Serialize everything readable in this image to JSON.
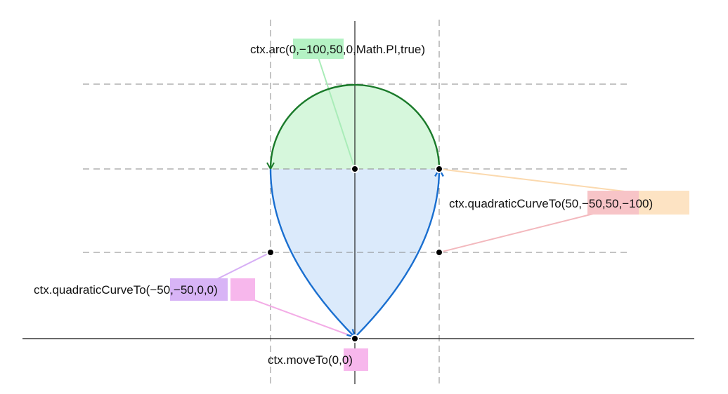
{
  "diagram": {
    "labels": {
      "arc": {
        "prefix": "ctx.arc(",
        "center": "0,−100",
        "rest": ",50,0,Math.PI,true)"
      },
      "quad_right": {
        "prefix": "ctx.quadraticCurveTo(",
        "control": "50,−50",
        "sep": ",",
        "end": "50,−100",
        "suffix": ")"
      },
      "quad_left": {
        "prefix": "ctx.quadraticCurveTo(",
        "control": "−50,−50",
        "sep": ",",
        "end": "0,0",
        "suffix": ")"
      },
      "move": {
        "prefix": "ctx.moveTo(",
        "point": "0,0",
        "suffix": ")"
      }
    },
    "colors": {
      "arc_stroke": "#1a7a2a",
      "arc_fill": "#d6f7dc",
      "curve_stroke": "#1a6fd0",
      "curve_fill": "#dbeafb",
      "green_highlight": "#b4f2c4",
      "red_highlight": "#f7c4c7",
      "orange_highlight": "#fde3c3",
      "purple_highlight": "#d8b4f6",
      "pink_highlight": "#f7b7ec",
      "green_leader": "#a9ecb8",
      "red_leader": "#f3b8bd",
      "orange_leader": "#fbd9ae",
      "purple_leader": "#d6aef5",
      "pink_leader": "#f3ace6",
      "dashed": "#888888"
    }
  }
}
